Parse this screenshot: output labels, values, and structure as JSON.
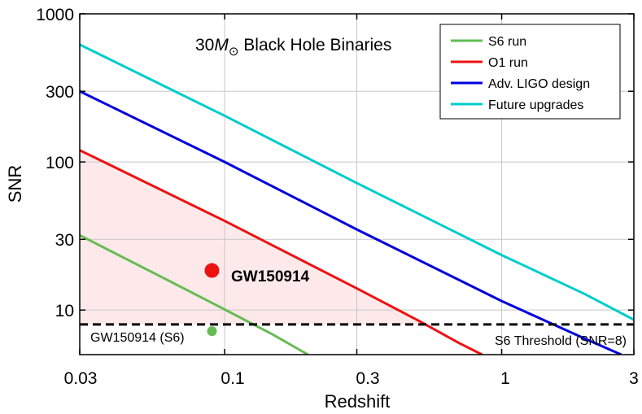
{
  "chart_data": {
    "type": "line",
    "title_prefix": "30",
    "title_mass": "M",
    "title_sub": "⊙",
    "title_suffix": " Black Hole Binaries",
    "xlabel": "Redshift",
    "ylabel": "SNR",
    "x_scale": "log",
    "y_scale": "log",
    "xlim": [
      0.03,
      3
    ],
    "ylim": [
      5,
      1000
    ],
    "x_ticks": [
      0.03,
      0.1,
      0.3,
      1,
      3
    ],
    "x_tick_labels": [
      "0.03",
      "0.1",
      "0.3",
      "1",
      "3"
    ],
    "y_ticks": [
      10,
      30,
      100,
      300,
      1000
    ],
    "y_tick_labels": [
      "10",
      "30",
      "100",
      "300",
      "1000"
    ],
    "grid": true,
    "legend_position": "top-right",
    "series": [
      {
        "name": "S6 run",
        "color": "#66bb55",
        "x": [
          0.03,
          0.06,
          0.1,
          0.15,
          0.2
        ],
        "y": [
          32,
          16.5,
          10.1,
          6.8,
          5.0
        ]
      },
      {
        "name": "O1 run",
        "color": "#ee1111",
        "x": [
          0.03,
          0.1,
          0.3,
          0.5,
          0.7,
          0.85
        ],
        "y": [
          120,
          40,
          14,
          8.5,
          6.0,
          5.0
        ]
      },
      {
        "name": "Adv. LIGO design",
        "color": "#0000dd",
        "x": [
          0.03,
          0.1,
          0.3,
          1,
          2,
          2.7
        ],
        "y": [
          300,
          100,
          35,
          11.5,
          6.4,
          5.0
        ]
      },
      {
        "name": "Future upgrades",
        "color": "#00cccc",
        "x": [
          0.03,
          0.1,
          0.3,
          1,
          2,
          3
        ],
        "y": [
          620,
          205,
          72,
          23.5,
          12.8,
          8.6
        ]
      }
    ],
    "threshold": {
      "y": 8,
      "label": "S6 Threshold (SNR=8)"
    },
    "shaded_region": {
      "color": "#fde9e9"
    },
    "points": [
      {
        "label": "GW150914",
        "x": 0.09,
        "y": 18.5,
        "color": "#ee1111"
      },
      {
        "label": "GW150914 (S6)",
        "x": 0.09,
        "y": 7.2,
        "color": "#66bb55"
      }
    ]
  }
}
